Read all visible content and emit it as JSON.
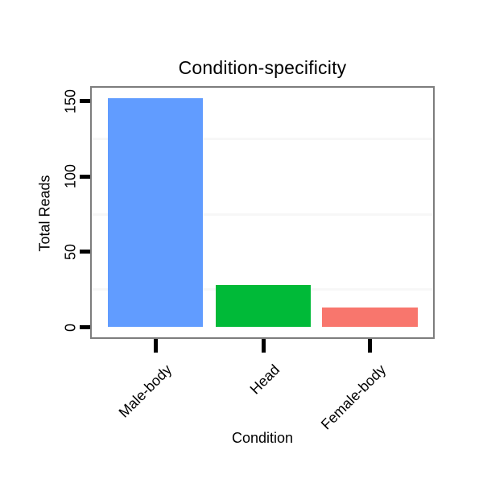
{
  "chart_data": {
    "type": "bar",
    "title": "Condition-specificity",
    "xlabel": "Condition",
    "ylabel": "Total Reads",
    "categories": [
      "Male-body",
      "Head",
      "Female-body"
    ],
    "values": [
      152,
      28,
      13
    ],
    "bar_colors": [
      "#619CFF",
      "#00BA38",
      "#F8766D"
    ],
    "ylim": [
      -8,
      160
    ],
    "yticks": [
      0,
      50,
      100,
      150
    ],
    "minor_gridlines": [
      25,
      75,
      125
    ],
    "grid": "faint minor gridlines only, white panel background",
    "legend": "none",
    "panel_border_color": "#7d7d7d",
    "gridline_color": "#f7f7f7",
    "tick_color": "#000000",
    "text_color": "#000000"
  }
}
